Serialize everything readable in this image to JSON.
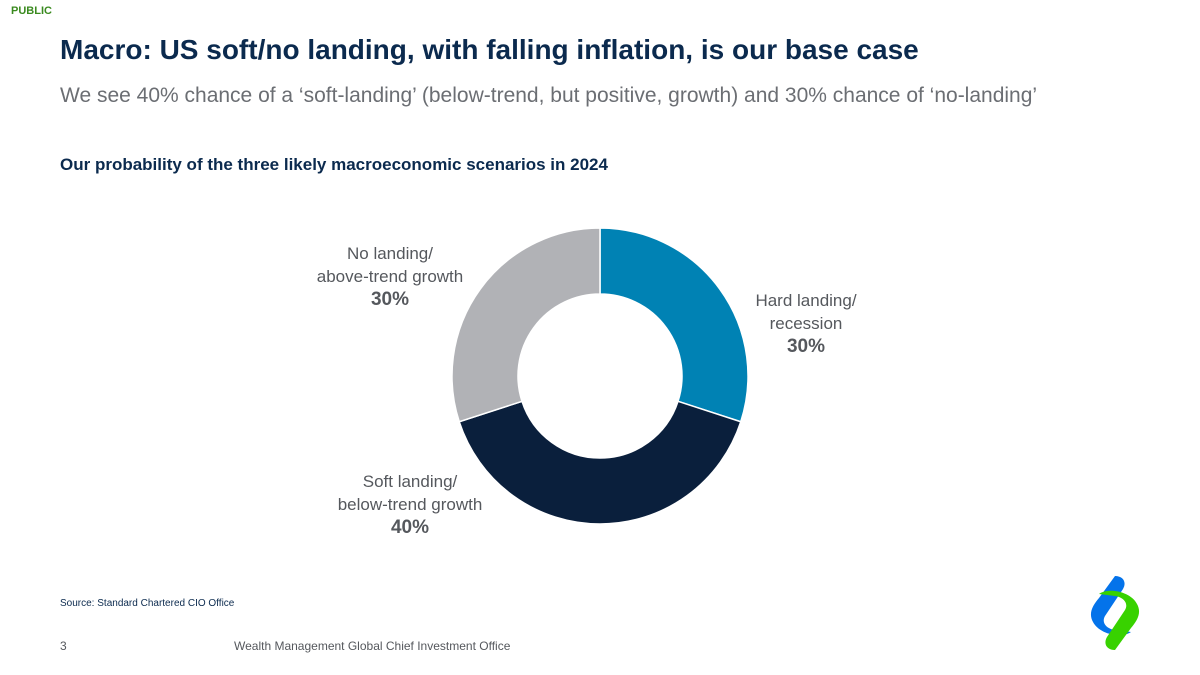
{
  "classification": "PUBLIC",
  "title": "Macro: US soft/no landing, with falling inflation, is our base case",
  "subtitle": "We see 40% chance of a ‘soft-landing’ (below-trend, but positive, growth) and 30% chance of ‘no-landing’",
  "chart_title": "Our probability of the three likely macroeconomic scenarios in 2024",
  "chart_data": {
    "type": "pie",
    "donut": true,
    "title": "Our probability of the three likely macroeconomic scenarios in 2024",
    "unit": "%",
    "slices": [
      {
        "label_lines": [
          "Hard landing/",
          "recession"
        ],
        "value": 30,
        "value_label": "30%",
        "color": "#0082b4"
      },
      {
        "label_lines": [
          "Soft landing/",
          "below-trend growth"
        ],
        "value": 40,
        "value_label": "40%",
        "color": "#0a1f3c"
      },
      {
        "label_lines": [
          "No landing/",
          "above-trend growth"
        ],
        "value": 30,
        "value_label": "30%",
        "color": "#b1b2b6"
      }
    ]
  },
  "source": "Source: Standard Chartered CIO Office",
  "footer": {
    "page_number": "3",
    "text": "Wealth Management Global Chief Investment Office"
  },
  "logo": {
    "icon": "standard-chartered-logo",
    "colors": [
      "#0473ea",
      "#38d200"
    ]
  }
}
